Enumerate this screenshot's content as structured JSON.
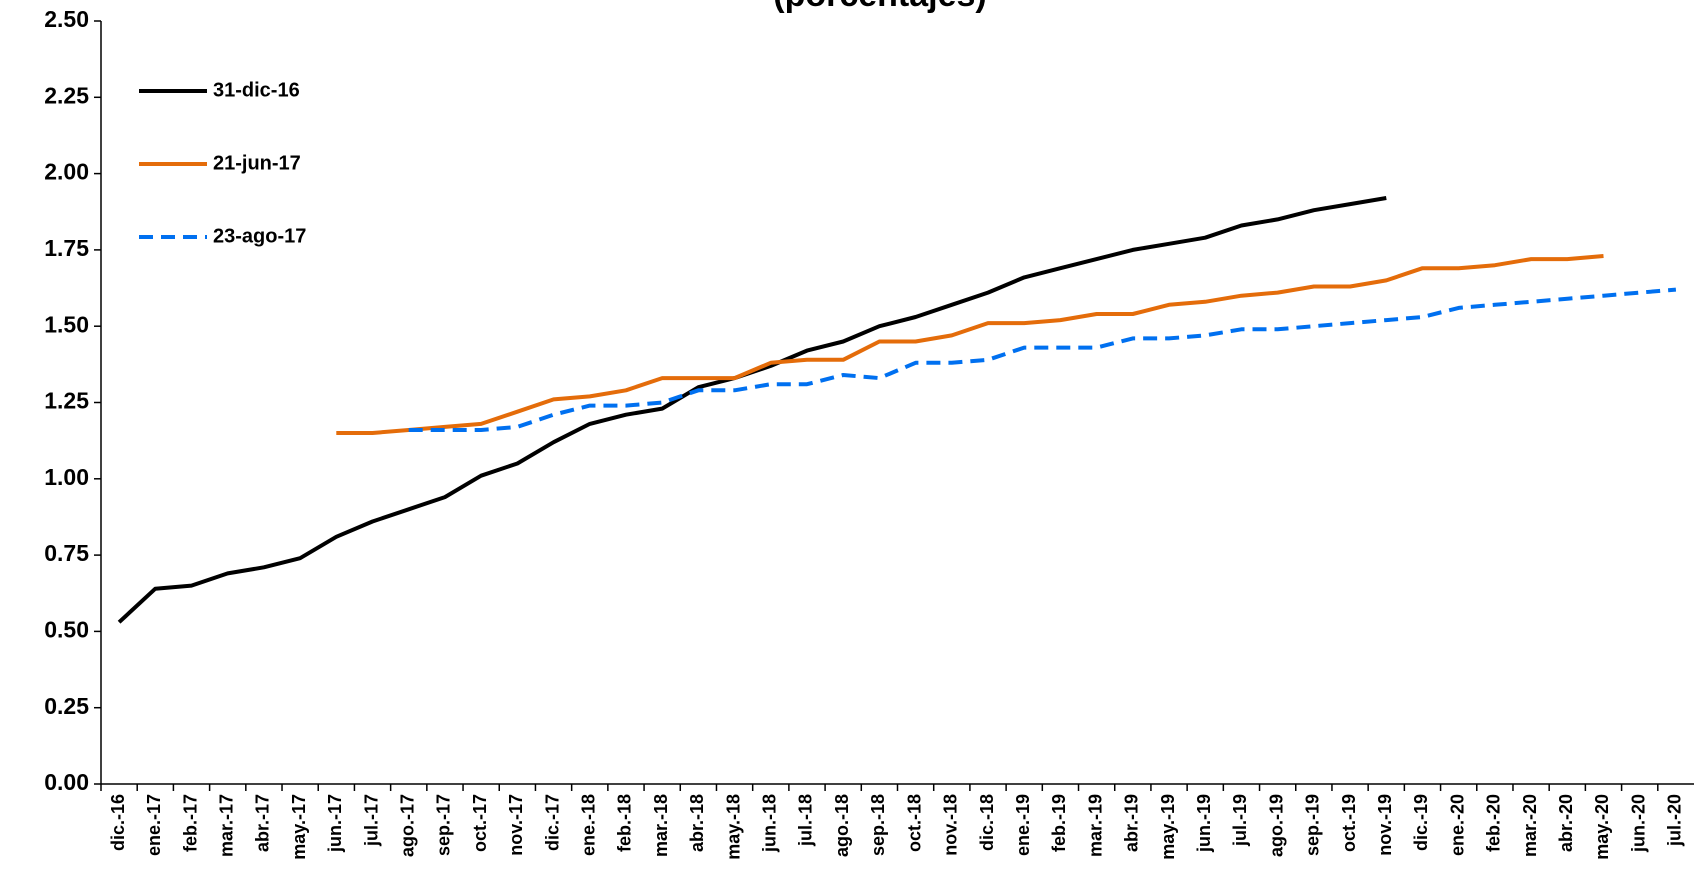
{
  "chart_data": {
    "type": "line",
    "title": "(porcentajes)",
    "categories": [
      "dic.-16",
      "ene.-17",
      "feb.-17",
      "mar.-17",
      "abr.-17",
      "may.-17",
      "jun.-17",
      "jul.-17",
      "ago.-17",
      "sep.-17",
      "oct.-17",
      "nov.-17",
      "dic.-17",
      "ene.-18",
      "feb.-18",
      "mar.-18",
      "abr.-18",
      "may.-18",
      "jun.-18",
      "jul.-18",
      "ago.-18",
      "sep.-18",
      "oct.-18",
      "nov.-18",
      "dic.-18",
      "ene.-19",
      "feb.-19",
      "mar.-19",
      "abr.-19",
      "may.-19",
      "jun.-19",
      "jul.-19",
      "ago.-19",
      "sep.-19",
      "oct.-19",
      "nov.-19",
      "dic.-19",
      "ene.-20",
      "feb.-20",
      "mar.-20",
      "abr.-20",
      "may.-20",
      "jun.-20",
      "jul.-20"
    ],
    "series": [
      {
        "name": "31-dic-16",
        "color": "#000000",
        "style": "solid",
        "values": [
          0.53,
          0.64,
          0.65,
          0.69,
          0.71,
          0.74,
          0.81,
          0.86,
          0.9,
          0.94,
          1.01,
          1.05,
          1.12,
          1.18,
          1.21,
          1.23,
          1.3,
          1.33,
          1.37,
          1.42,
          1.45,
          1.5,
          1.53,
          1.57,
          1.61,
          1.66,
          1.69,
          1.72,
          1.75,
          1.77,
          1.79,
          1.83,
          1.85,
          1.88,
          1.9,
          1.92,
          null,
          null,
          null,
          null,
          null,
          null,
          null,
          null
        ]
      },
      {
        "name": "21-jun-17",
        "color": "#e46c0a",
        "style": "solid",
        "values": [
          null,
          null,
          null,
          null,
          null,
          null,
          1.15,
          1.15,
          1.16,
          1.17,
          1.18,
          1.22,
          1.26,
          1.27,
          1.29,
          1.33,
          1.33,
          1.33,
          1.38,
          1.39,
          1.39,
          1.45,
          1.45,
          1.47,
          1.51,
          1.51,
          1.52,
          1.54,
          1.54,
          1.57,
          1.58,
          1.6,
          1.61,
          1.63,
          1.63,
          1.65,
          1.69,
          1.69,
          1.7,
          1.72,
          1.72,
          1.73,
          null,
          null
        ]
      },
      {
        "name": "23-ago-17",
        "color": "#0070f0",
        "style": "dashed",
        "values": [
          null,
          null,
          null,
          null,
          null,
          null,
          null,
          null,
          1.16,
          1.16,
          1.16,
          1.17,
          1.21,
          1.24,
          1.24,
          1.25,
          1.29,
          1.29,
          1.31,
          1.31,
          1.34,
          1.33,
          1.38,
          1.38,
          1.39,
          1.43,
          1.43,
          1.43,
          1.46,
          1.46,
          1.47,
          1.49,
          1.49,
          1.5,
          1.51,
          1.52,
          1.53,
          1.56,
          1.57,
          1.58,
          1.59,
          1.6,
          1.61,
          1.62
        ]
      }
    ],
    "ylim": [
      0,
      2.5
    ],
    "yticks": [
      {
        "value": 0,
        "label": "0.00"
      },
      {
        "value": 0.25,
        "label": "0.25"
      },
      {
        "value": 0.5,
        "label": "0.50"
      },
      {
        "value": 0.75,
        "label": "0.75"
      },
      {
        "value": 1,
        "label": "1.00"
      },
      {
        "value": 1.25,
        "label": "1.25"
      },
      {
        "value": 1.5,
        "label": "1.50"
      },
      {
        "value": 1.75,
        "label": "1.75"
      },
      {
        "value": 2,
        "label": "2.00"
      },
      {
        "value": 2.25,
        "label": "2.25"
      },
      {
        "value": 2.5,
        "label": "2.50"
      }
    ],
    "grid": false,
    "legend": "upper left"
  }
}
